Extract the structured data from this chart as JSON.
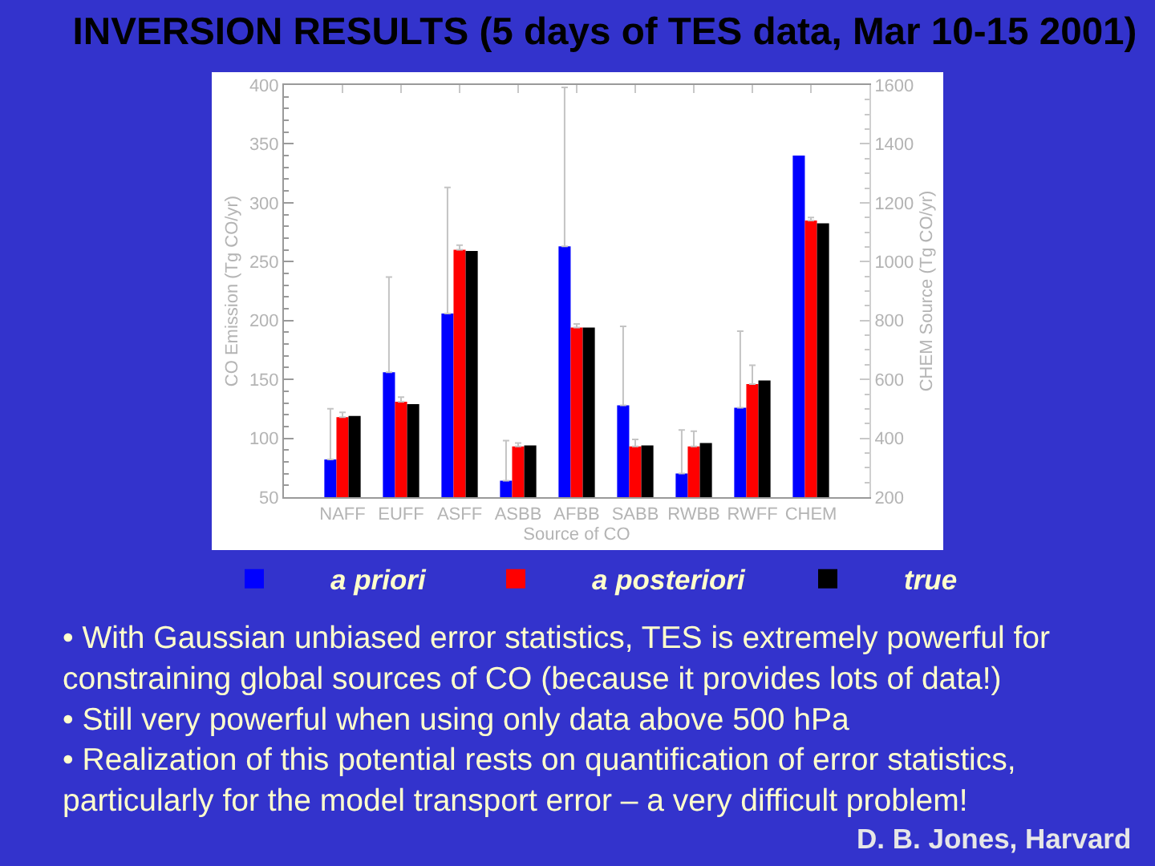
{
  "chart_data": {
    "type": "bar",
    "title": "INVERSION RESULTS (5 days of TES data, Mar 10-15 2001)",
    "xlabel": "Source of CO",
    "ylabel": "CO Emission (Tg CO/yr)",
    "y2label": "CHEM Source (Tg CO/yr)",
    "categories": [
      "NAFF",
      "EUFF",
      "ASFF",
      "ASBB",
      "AFBB",
      "SABB",
      "RWBB",
      "RWFF",
      "CHEM"
    ],
    "series": [
      {
        "name": "a priori",
        "color": "#0000ff",
        "values": [
          82,
          156,
          206,
          64,
          263,
          128,
          70,
          126,
          null
        ],
        "errors": [
          [
            82,
            125
          ],
          [
            156,
            237
          ],
          [
            206,
            313
          ],
          [
            64,
            98
          ],
          [
            263,
            398
          ],
          [
            128,
            195
          ],
          [
            70,
            107
          ],
          [
            126,
            191
          ],
          null
        ]
      },
      {
        "name": "a posteriori",
        "color": "#ff0000",
        "values": [
          118,
          131,
          260,
          93,
          194,
          93,
          93,
          146,
          null
        ],
        "errors": [
          [
            118,
            122
          ],
          [
            131,
            135
          ],
          [
            260,
            264
          ],
          [
            93,
            96
          ],
          [
            194,
            197
          ],
          [
            93,
            99
          ],
          [
            93,
            106
          ],
          [
            146,
            162
          ],
          null
        ]
      },
      {
        "name": "true",
        "color": "#000000",
        "values": [
          119,
          129,
          259,
          94,
          194,
          94,
          96,
          149,
          null
        ]
      },
      {
        "color": "#0000ff",
        "axis": "y2",
        "values": [
          null,
          null,
          null,
          null,
          null,
          null,
          null,
          null,
          1360
        ]
      },
      {
        "color": "#ff0000",
        "axis": "y2",
        "values": [
          null,
          null,
          null,
          null,
          null,
          null,
          null,
          null,
          1140
        ],
        "errors": [
          null,
          null,
          null,
          null,
          null,
          null,
          null,
          null,
          [
            1140,
            1150
          ]
        ]
      },
      {
        "color": "#000000",
        "axis": "y2",
        "values": [
          null,
          null,
          null,
          null,
          null,
          null,
          null,
          null,
          1130
        ]
      }
    ],
    "ylim": [
      50,
      400
    ],
    "yticks": [
      50,
      {
        "value": 60,
        "label": null
      },
      {
        "value": 70,
        "label": null
      },
      {
        "value": 80,
        "label": null
      },
      {
        "value": 90,
        "label": null
      },
      100,
      {
        "value": 110,
        "label": null
      },
      {
        "value": 120,
        "label": null
      },
      {
        "value": 130,
        "label": null
      },
      {
        "value": 140,
        "label": null
      },
      150,
      {
        "value": 160,
        "label": null
      },
      {
        "value": 170,
        "label": null
      },
      {
        "value": 180,
        "label": null
      },
      {
        "value": 190,
        "label": null
      },
      200,
      {
        "value": 210,
        "label": null
      },
      {
        "value": 220,
        "label": null
      },
      {
        "value": 230,
        "label": null
      },
      {
        "value": 240,
        "label": null
      },
      250,
      {
        "value": 260,
        "label": null
      },
      {
        "value": 270,
        "label": null
      },
      {
        "value": 280,
        "label": null
      },
      {
        "value": 290,
        "label": null
      },
      300,
      {
        "value": 310,
        "label": null
      },
      {
        "value": 320,
        "label": null
      },
      {
        "value": 330,
        "label": null
      },
      {
        "value": 340,
        "label": null
      },
      350,
      {
        "value": 360,
        "label": null
      },
      {
        "value": 370,
        "label": null
      },
      {
        "value": 380,
        "label": null
      },
      {
        "value": 390,
        "label": null
      },
      400
    ],
    "y2lim": [
      200,
      1600
    ],
    "y2ticks": [
      200,
      {
        "value": 250,
        "label": null
      },
      {
        "value": 300,
        "label": null
      },
      {
        "value": 350,
        "label": null
      },
      400,
      {
        "value": 450,
        "label": null
      },
      {
        "value": 500,
        "label": null
      },
      {
        "value": 550,
        "label": null
      },
      600,
      {
        "value": 650,
        "label": null
      },
      {
        "value": 700,
        "label": null
      },
      {
        "value": 750,
        "label": null
      },
      800,
      {
        "value": 850,
        "label": null
      },
      {
        "value": 900,
        "label": null
      },
      {
        "value": 950,
        "label": null
      },
      1000,
      {
        "value": 1050,
        "label": null
      },
      {
        "value": 1100,
        "label": null
      },
      {
        "value": 1150,
        "label": null
      },
      1200,
      {
        "value": 1250,
        "label": null
      },
      {
        "value": 1300,
        "label": null
      },
      {
        "value": 1350,
        "label": null
      },
      1400,
      {
        "value": 1450,
        "label": null
      },
      {
        "value": 1500,
        "label": null
      },
      {
        "value": 1550,
        "label": null
      },
      1600
    ],
    "legend": "bottom",
    "annotations": [
      "• With Gaussian unbiased error statistics, TES is extremely powerful for\nconstraining global sources of CO (because it provides lots of data!)",
      "• Still very powerful when using only data above 500 hPa",
      "• Realization of this potential rests on quantification of error statistics,\nparticularly for the model transport error – a very difficult problem!",
      "D. B. Jones, Harvard"
    ]
  }
}
